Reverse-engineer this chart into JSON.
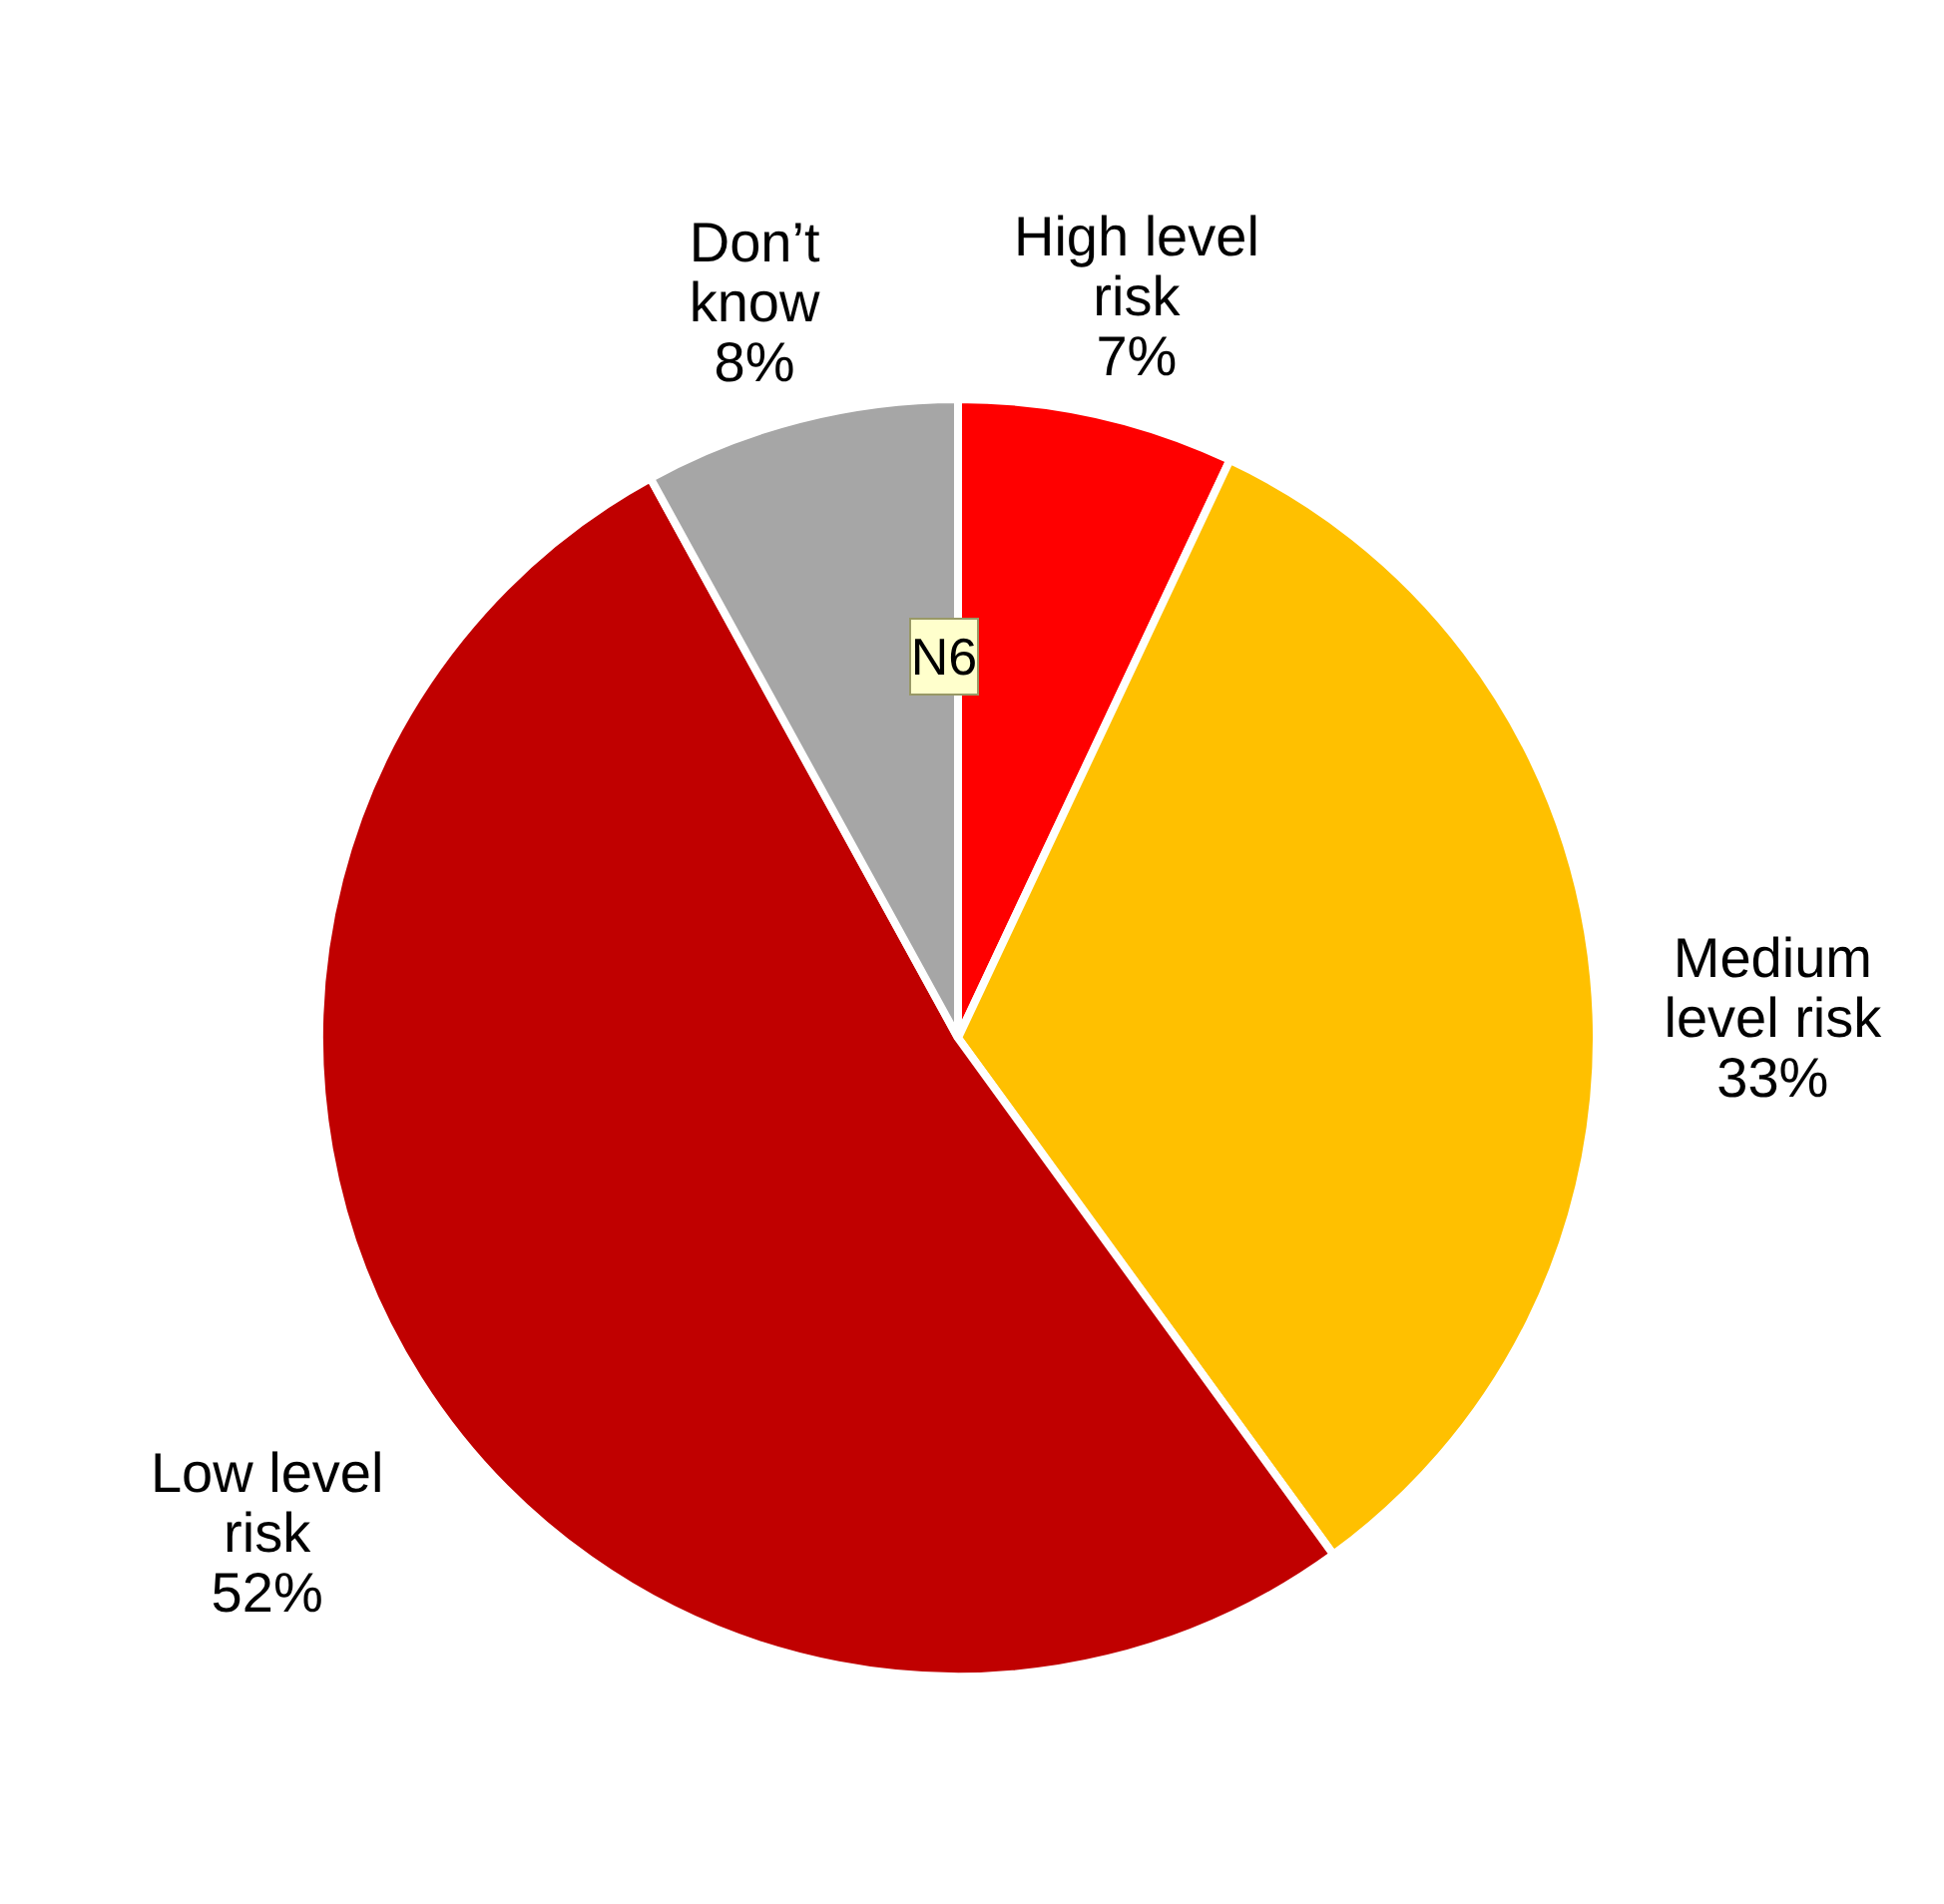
{
  "chart_data": {
    "type": "pie",
    "categories": [
      "High level\nrisk",
      "Medium\nlevel risk",
      "Low level\nrisk",
      "Don’t\nknow"
    ],
    "values": [
      7,
      33,
      52,
      8
    ],
    "value_labels": [
      "7%",
      "33%",
      "52%",
      "8%"
    ],
    "colors": [
      "#ff0000",
      "#ffc000",
      "#c00000",
      "#a6a6a6"
    ],
    "annotations": [
      "N6"
    ]
  }
}
